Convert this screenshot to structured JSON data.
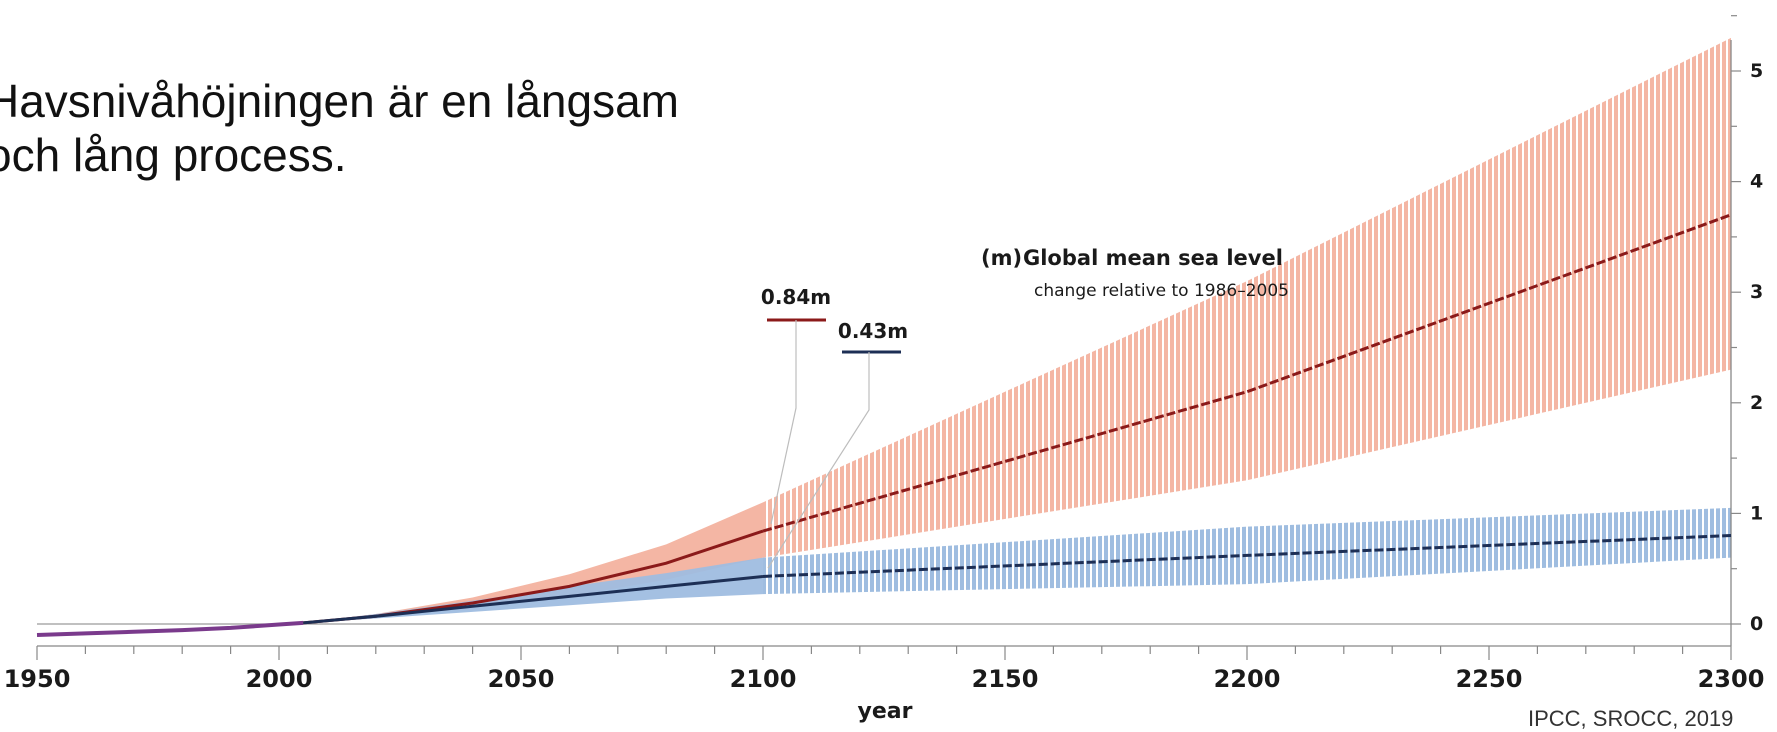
{
  "slide": {
    "line1": "Havsnivåhöjningen är en långsam",
    "line2": "och lång process."
  },
  "source": "IPCC, SROCC, 2019",
  "chart_data": {
    "type": "line",
    "title": "Global mean sea level",
    "unit_label": "(m)",
    "subtitle": "change relative to 1986–2005",
    "xlabel": "year",
    "ylabel": "",
    "xlim": [
      1950,
      2300
    ],
    "ylim": [
      -0.15,
      5.5
    ],
    "x_ticks": [
      1950,
      2000,
      2050,
      2100,
      2150,
      2200,
      2250,
      2300
    ],
    "y_ticks": [
      0,
      1,
      2,
      3,
      4,
      5
    ],
    "grid": false,
    "colors": {
      "high": "#8b1a1a",
      "high_band": "#f4b6a4",
      "low": "#1d2f55",
      "low_band": "#9fbde0",
      "historical": "#7a3a8c",
      "axis": "#888888"
    },
    "historical": {
      "x": [
        1950,
        1960,
        1970,
        1980,
        1990,
        2000,
        2005
      ],
      "y": [
        -0.1,
        -0.085,
        -0.07,
        -0.055,
        -0.035,
        -0.005,
        0.01
      ]
    },
    "series": [
      {
        "x": [
          2005,
          2020,
          2040,
          2060,
          2080,
          2100,
          2200,
          2300
        ],
        "y": [
          0.01,
          0.07,
          0.19,
          0.34,
          0.55,
          0.84,
          2.1,
          3.7
        ],
        "lower": [
          0.01,
          0.06,
          0.15,
          0.25,
          0.4,
          0.6,
          1.3,
          2.3
        ],
        "upper": [
          0.01,
          0.09,
          0.24,
          0.45,
          0.72,
          1.1,
          3.1,
          5.3
        ]
      },
      {
        "x": [
          2005,
          2020,
          2040,
          2060,
          2080,
          2100,
          2200,
          2300
        ],
        "y": [
          0.01,
          0.07,
          0.16,
          0.25,
          0.34,
          0.43,
          0.62,
          0.8
        ],
        "lower": [
          0.01,
          0.05,
          0.11,
          0.17,
          0.23,
          0.27,
          0.36,
          0.6
        ],
        "upper": [
          0.01,
          0.09,
          0.21,
          0.34,
          0.46,
          0.6,
          0.88,
          1.05
        ]
      }
    ],
    "annotations": [
      {
        "text": "0.84m",
        "x": 2100,
        "y": 0.84
      },
      {
        "text": "0.43m",
        "x": 2100,
        "y": 0.43
      }
    ]
  }
}
